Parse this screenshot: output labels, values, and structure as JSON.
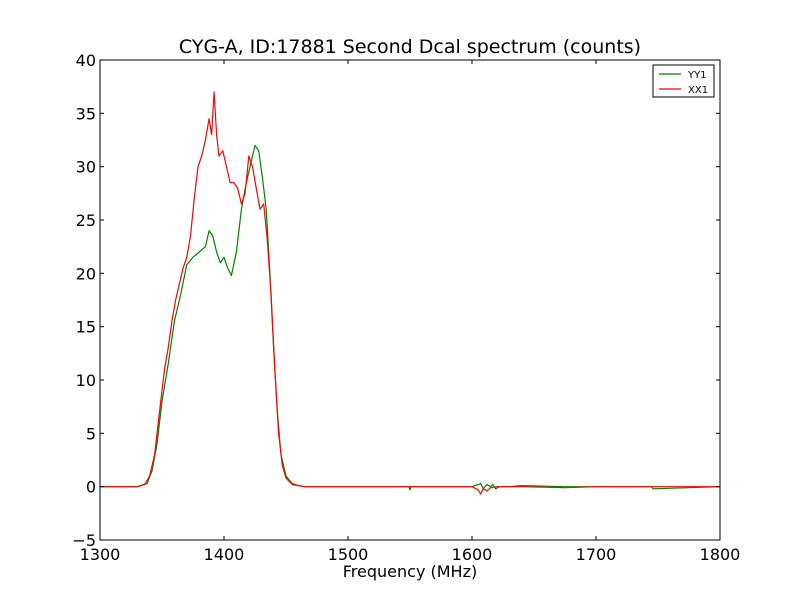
{
  "chart_data": {
    "type": "line",
    "title": "CYG-A, ID:17881 Second Dcal spectrum (counts)",
    "xlabel": "Frequency (MHz)",
    "ylabel": "",
    "xlim": [
      1300,
      1800
    ],
    "ylim": [
      -5,
      40
    ],
    "xticks": [
      1300,
      1400,
      1500,
      1600,
      1700,
      1800
    ],
    "yticks": [
      -5,
      0,
      5,
      10,
      15,
      20,
      25,
      30,
      35,
      40
    ],
    "xtick_labels": [
      "1300",
      "1400",
      "1500",
      "1600",
      "1700",
      "1800"
    ],
    "ytick_labels": [
      "−5",
      "0",
      "5",
      "10",
      "15",
      "20",
      "25",
      "30",
      "35",
      "40"
    ],
    "grid": false,
    "legend_position": "top-right",
    "series": [
      {
        "name": "YY1",
        "color": "#008000",
        "x": [
          1300,
          1330,
          1338,
          1342,
          1346,
          1350,
          1355,
          1360,
          1365,
          1370,
          1375,
          1380,
          1385,
          1388,
          1391,
          1394,
          1397,
          1400,
          1403,
          1406,
          1410,
          1414,
          1418,
          1422,
          1425,
          1428,
          1431,
          1434,
          1437,
          1440,
          1443,
          1446,
          1450,
          1455,
          1460,
          1465,
          1470,
          1500,
          1549,
          1550,
          1551,
          1600,
          1605,
          1607,
          1609,
          1612,
          1615,
          1617,
          1619,
          1622,
          1630,
          1640,
          1675,
          1700,
          1730,
          1745,
          1746,
          1800
        ],
        "y": [
          0,
          0,
          0.3,
          1.5,
          4,
          8,
          11.5,
          15.5,
          18,
          20.8,
          21.5,
          22,
          22.5,
          24,
          23.5,
          22,
          21,
          21.5,
          20.5,
          19.8,
          22,
          26,
          28.5,
          30.5,
          32,
          31.5,
          29,
          26,
          20,
          13,
          7,
          3,
          1,
          0.3,
          0.1,
          0,
          0,
          0,
          0,
          -0.3,
          0,
          0,
          0.2,
          0.3,
          -0.2,
          0.2,
          0,
          0.2,
          -0.2,
          0,
          0,
          0.1,
          0,
          0,
          0,
          0,
          -0.2,
          0
        ]
      },
      {
        "name": "XX1",
        "color": "#ff0000",
        "x": [
          1300,
          1330,
          1336,
          1340,
          1344,
          1348,
          1352,
          1355,
          1358,
          1361,
          1364,
          1367,
          1370,
          1373,
          1376,
          1379,
          1382,
          1385,
          1388,
          1390,
          1392,
          1394,
          1396,
          1399,
          1402,
          1405,
          1408,
          1411,
          1414,
          1417,
          1420,
          1423,
          1426,
          1429,
          1432,
          1435,
          1438,
          1441,
          1444,
          1447,
          1450,
          1455,
          1460,
          1465,
          1470,
          1500,
          1600,
          1605,
          1607,
          1609,
          1612,
          1615,
          1620,
          1640,
          1675,
          1700,
          1730,
          1745,
          1800
        ],
        "y": [
          0,
          0,
          0.2,
          1,
          3,
          7,
          11,
          13,
          15.5,
          17.5,
          19,
          20.5,
          21.5,
          23.5,
          27,
          30,
          31,
          32.5,
          34.5,
          33,
          37,
          33,
          31,
          31.5,
          30,
          28.5,
          28.5,
          28,
          26.5,
          27.5,
          31,
          30,
          28,
          26,
          26.5,
          23,
          18,
          11,
          5,
          2,
          0.8,
          0.2,
          0.1,
          0,
          0,
          0,
          0,
          -0.3,
          -0.7,
          -0.2,
          -0.4,
          -0.1,
          0,
          0,
          -0.1,
          0,
          0,
          0,
          0
        ]
      }
    ]
  }
}
